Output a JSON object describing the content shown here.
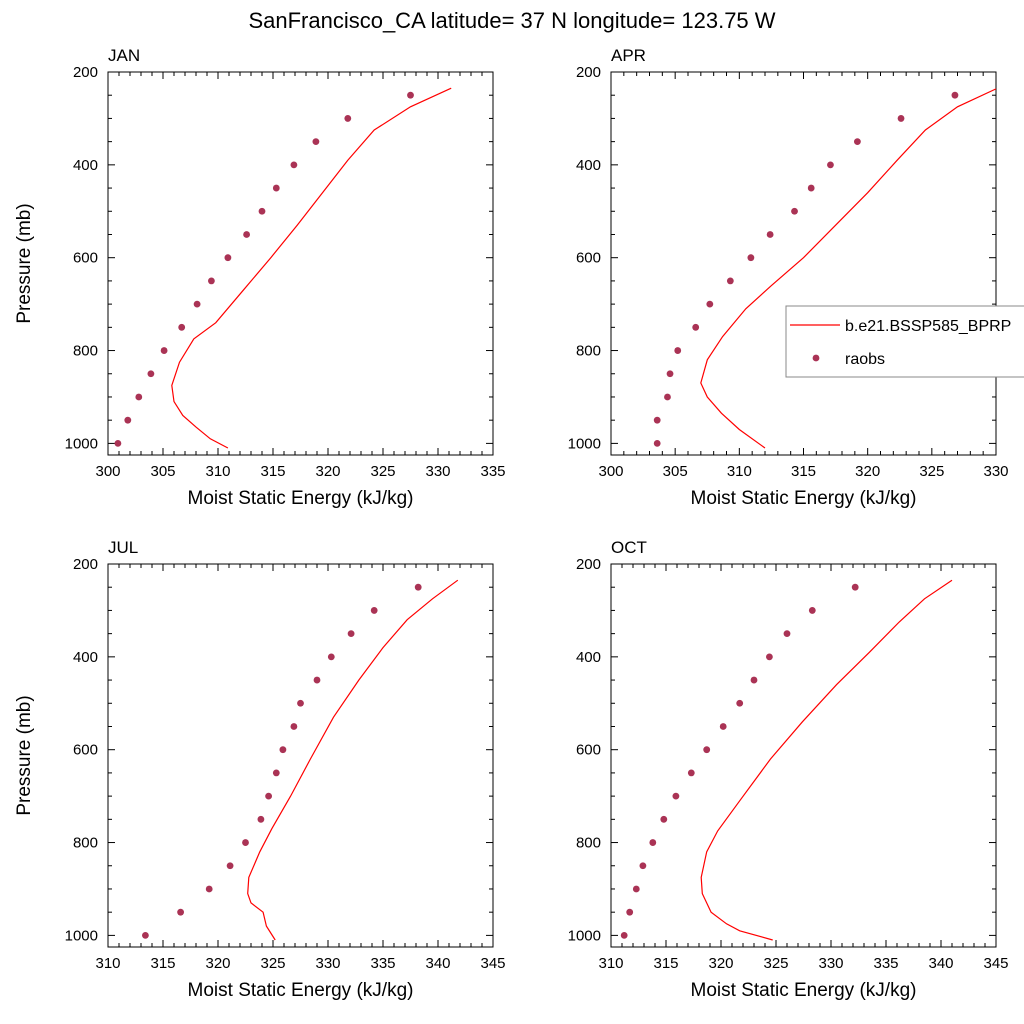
{
  "figure": {
    "title": "SanFrancisco_CA  latitude= 37 N longitude= 123.75 W"
  },
  "legend": {
    "series_line_label": "b.e21.BSSP585_BPRP",
    "series_dots_label": "raobs",
    "line_color": "#ff0000",
    "dot_color": "#aa3355"
  },
  "chart_data": [
    {
      "type": "line",
      "panel_title": "JAN",
      "xlabel": "Moist Static Energy (kJ/kg)",
      "ylabel": "Pressure (mb)",
      "xlim": [
        300,
        335
      ],
      "ylim": [
        200,
        1025
      ],
      "xticks": [
        300,
        305,
        310,
        315,
        320,
        325,
        330,
        335
      ],
      "yticks": [
        200,
        400,
        600,
        800,
        1000
      ],
      "series": [
        {
          "name": "b.e21.BSSP585_BPRP",
          "style": "line",
          "points": [
            [
              331.2,
              235
            ],
            [
              327.5,
              275
            ],
            [
              324.2,
              325
            ],
            [
              321.8,
              390
            ],
            [
              319.5,
              460
            ],
            [
              317.2,
              530
            ],
            [
              314.8,
              600
            ],
            [
              312.3,
              670
            ],
            [
              309.8,
              740
            ],
            [
              307.8,
              775
            ],
            [
              306.5,
              825
            ],
            [
              305.8,
              875
            ],
            [
              306.0,
              910
            ],
            [
              306.8,
              940
            ],
            [
              308.0,
              965
            ],
            [
              309.3,
              990
            ],
            [
              310.9,
              1010
            ]
          ]
        },
        {
          "name": "raobs",
          "style": "dots",
          "points": [
            [
              327.5,
              250
            ],
            [
              321.8,
              300
            ],
            [
              318.9,
              350
            ],
            [
              316.9,
              400
            ],
            [
              315.3,
              450
            ],
            [
              314.0,
              500
            ],
            [
              312.6,
              550
            ],
            [
              310.9,
              600
            ],
            [
              309.4,
              650
            ],
            [
              308.1,
              700
            ],
            [
              306.7,
              750
            ],
            [
              305.1,
              800
            ],
            [
              303.9,
              850
            ],
            [
              302.8,
              900
            ],
            [
              301.8,
              950
            ],
            [
              300.9,
              1000
            ]
          ]
        }
      ]
    },
    {
      "type": "line",
      "panel_title": "APR",
      "xlabel": "Moist Static Energy (kJ/kg)",
      "ylabel": "",
      "xlim": [
        300,
        330
      ],
      "ylim": [
        200,
        1025
      ],
      "xticks": [
        300,
        305,
        310,
        315,
        320,
        325,
        330
      ],
      "yticks": [
        200,
        400,
        600,
        800,
        1000
      ],
      "series": [
        {
          "name": "b.e21.BSSP585_BPRP",
          "style": "line",
          "points": [
            [
              330.5,
              230
            ],
            [
              327.0,
              275
            ],
            [
              324.5,
              325
            ],
            [
              322.3,
              390
            ],
            [
              320.0,
              460
            ],
            [
              317.5,
              530
            ],
            [
              315.0,
              600
            ],
            [
              312.5,
              660
            ],
            [
              310.5,
              710
            ],
            [
              308.7,
              770
            ],
            [
              307.5,
              820
            ],
            [
              307.0,
              870
            ],
            [
              307.5,
              900
            ],
            [
              308.6,
              935
            ],
            [
              310.0,
              970
            ],
            [
              312.0,
              1010
            ]
          ]
        },
        {
          "name": "raobs",
          "style": "dots",
          "points": [
            [
              326.8,
              250
            ],
            [
              322.6,
              300
            ],
            [
              319.2,
              350
            ],
            [
              317.1,
              400
            ],
            [
              315.6,
              450
            ],
            [
              314.3,
              500
            ],
            [
              312.4,
              550
            ],
            [
              310.9,
              600
            ],
            [
              309.3,
              650
            ],
            [
              307.7,
              700
            ],
            [
              306.6,
              750
            ],
            [
              305.2,
              800
            ],
            [
              304.6,
              850
            ],
            [
              304.4,
              900
            ],
            [
              303.6,
              950
            ],
            [
              303.6,
              1000
            ]
          ]
        }
      ]
    },
    {
      "type": "line",
      "panel_title": "JUL",
      "xlabel": "Moist Static Energy (kJ/kg)",
      "ylabel": "Pressure (mb)",
      "xlim": [
        310,
        345
      ],
      "ylim": [
        200,
        1025
      ],
      "xticks": [
        310,
        315,
        320,
        325,
        330,
        335,
        340,
        345
      ],
      "yticks": [
        200,
        400,
        600,
        800,
        1000
      ],
      "series": [
        {
          "name": "b.e21.BSSP585_BPRP",
          "style": "line",
          "points": [
            [
              341.8,
              235
            ],
            [
              339.5,
              275
            ],
            [
              337.2,
              320
            ],
            [
              335.0,
              380
            ],
            [
              332.8,
              450
            ],
            [
              330.5,
              530
            ],
            [
              328.4,
              620
            ],
            [
              326.6,
              700
            ],
            [
              324.9,
              770
            ],
            [
              323.8,
              820
            ],
            [
              322.8,
              875
            ],
            [
              322.7,
              910
            ],
            [
              323.0,
              930
            ],
            [
              324.1,
              950
            ],
            [
              324.4,
              980
            ],
            [
              325.2,
              1010
            ]
          ]
        },
        {
          "name": "raobs",
          "style": "dots",
          "points": [
            [
              338.2,
              250
            ],
            [
              334.2,
              300
            ],
            [
              332.1,
              350
            ],
            [
              330.3,
              400
            ],
            [
              329.0,
              450
            ],
            [
              327.5,
              500
            ],
            [
              326.9,
              550
            ],
            [
              325.9,
              600
            ],
            [
              325.3,
              650
            ],
            [
              324.6,
              700
            ],
            [
              323.9,
              750
            ],
            [
              322.5,
              800
            ],
            [
              321.1,
              850
            ],
            [
              319.2,
              900
            ],
            [
              316.6,
              950
            ],
            [
              313.4,
              1000
            ]
          ]
        }
      ]
    },
    {
      "type": "line",
      "panel_title": "OCT",
      "xlabel": "Moist Static Energy (kJ/kg)",
      "ylabel": "",
      "xlim": [
        310,
        345
      ],
      "ylim": [
        200,
        1025
      ],
      "xticks": [
        310,
        315,
        320,
        325,
        330,
        335,
        340,
        345
      ],
      "yticks": [
        200,
        400,
        600,
        800,
        1000
      ],
      "series": [
        {
          "name": "b.e21.BSSP585_BPRP",
          "style": "line",
          "points": [
            [
              341.0,
              235
            ],
            [
              338.5,
              275
            ],
            [
              336.2,
              325
            ],
            [
              333.5,
              390
            ],
            [
              330.5,
              460
            ],
            [
              327.4,
              540
            ],
            [
              324.5,
              620
            ],
            [
              321.7,
              710
            ],
            [
              319.7,
              775
            ],
            [
              318.7,
              820
            ],
            [
              318.2,
              875
            ],
            [
              318.3,
              910
            ],
            [
              319.1,
              950
            ],
            [
              320.5,
              975
            ],
            [
              321.7,
              990
            ],
            [
              324.7,
              1010
            ]
          ]
        },
        {
          "name": "raobs",
          "style": "dots",
          "points": [
            [
              332.2,
              250
            ],
            [
              328.3,
              300
            ],
            [
              326.0,
              350
            ],
            [
              324.4,
              400
            ],
            [
              323.0,
              450
            ],
            [
              321.7,
              500
            ],
            [
              320.2,
              550
            ],
            [
              318.7,
              600
            ],
            [
              317.3,
              650
            ],
            [
              315.9,
              700
            ],
            [
              314.8,
              750
            ],
            [
              313.8,
              800
            ],
            [
              312.9,
              850
            ],
            [
              312.3,
              900
            ],
            [
              311.7,
              950
            ],
            [
              311.2,
              1000
            ]
          ]
        }
      ]
    }
  ]
}
